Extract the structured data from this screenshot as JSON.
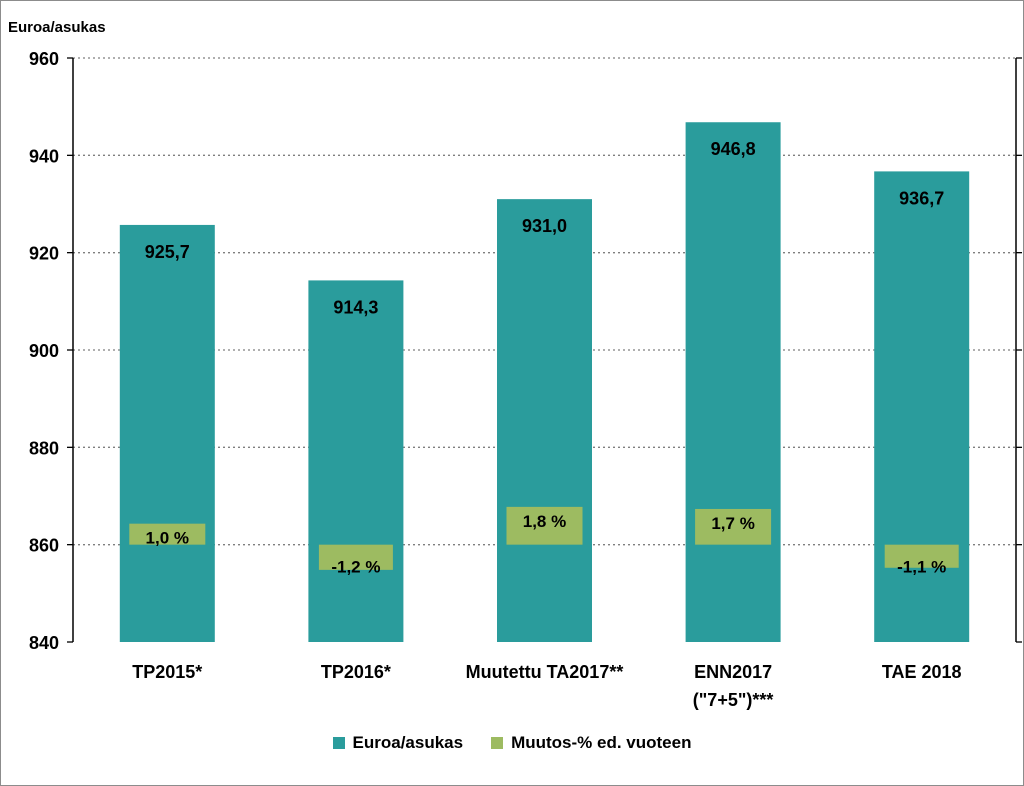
{
  "chart_data": {
    "type": "bar",
    "ylabel": "Euroa/asukas",
    "ylim": [
      840,
      960
    ],
    "yticks": [
      840,
      860,
      880,
      900,
      920,
      940,
      960
    ],
    "grid": "horizontal-dotted",
    "categories": [
      [
        "TP2015*"
      ],
      [
        "TP2016*"
      ],
      [
        "Muutettu TA2017**"
      ],
      [
        "ENN2017",
        "(\"7+5\")***"
      ],
      [
        "TAE 2018"
      ]
    ],
    "series": [
      {
        "name": "Euroa/asukas",
        "color": "#2a9c9c",
        "values": [
          925.7,
          914.3,
          931.0,
          946.8,
          936.7
        ],
        "labels": [
          "925,7",
          "914,3",
          "931,0",
          "946,8",
          "936,7"
        ]
      },
      {
        "name": "Muutos-% ed. vuoteen",
        "color": "#9dbb61",
        "axis": "secondary-unlabeled",
        "values": [
          1.0,
          -1.2,
          1.8,
          1.7,
          -1.1
        ],
        "labels": [
          "1,0 %",
          "-1,2 %",
          "1,8 %",
          "1,7 %",
          "-1,1 %"
        ]
      }
    ],
    "legend_position": "bottom-center"
  }
}
